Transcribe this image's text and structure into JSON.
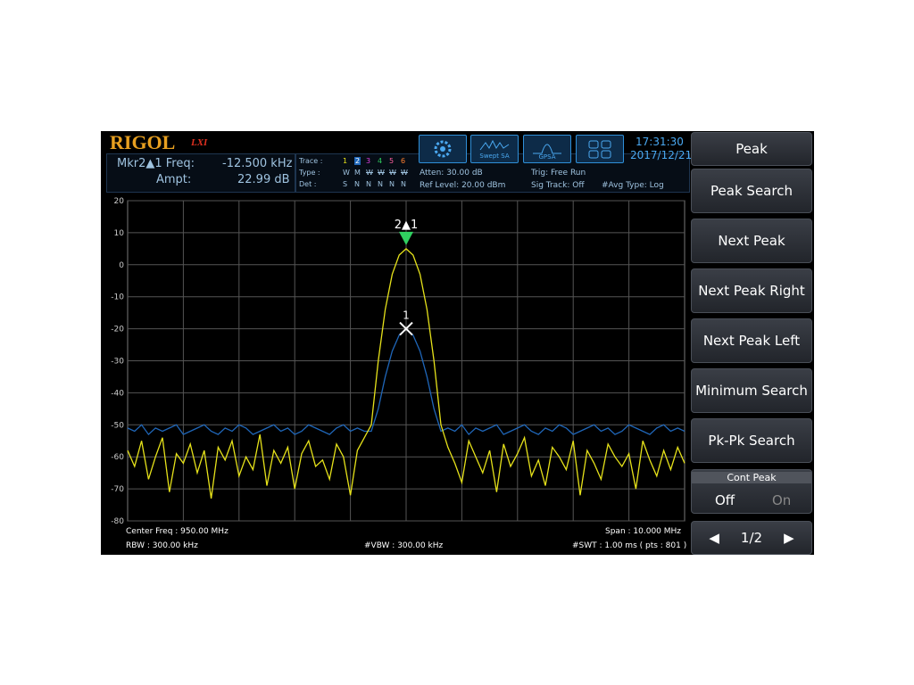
{
  "header": {
    "logo": "RIGOL",
    "logo_sub": "LXI",
    "time": "17:31:30",
    "date": "2017/12/21"
  },
  "marker_readout": {
    "freq_label": "Mkr2▲1 Freq:",
    "freq_value": "-12.500 kHz",
    "ampt_label": "Ampt:",
    "ampt_value": "22.99 dB"
  },
  "trace_table": {
    "rows": [
      [
        "Trace :",
        "1",
        "2",
        "3",
        "4",
        "5",
        "6"
      ],
      [
        "Type :",
        "W",
        "M",
        "W",
        "W",
        "W",
        "W"
      ],
      [
        "Det :",
        "S",
        "N",
        "N",
        "N",
        "N",
        "N"
      ]
    ]
  },
  "mode_icons": [
    "Swept SA",
    "GPSA"
  ],
  "status": {
    "atten": "Atten: 30.00 dB",
    "ref_level": "Ref Level: 20.00 dBm",
    "trig": "Trig: Free Run",
    "sig_track": "Sig Track: Off",
    "avg_type": "#Avg Type: Log"
  },
  "chart_data": {
    "type": "line",
    "ylim": [
      -80,
      20
    ],
    "yticks": [
      20,
      10,
      0,
      -10,
      -20,
      -30,
      -40,
      -50,
      -60,
      -70,
      -80
    ],
    "grid": true,
    "categories": [
      null,
      null,
      null,
      null,
      null,
      null,
      null,
      null,
      null,
      null,
      null,
      null,
      null,
      null,
      null,
      null,
      null,
      null,
      null,
      null,
      null,
      null,
      null,
      null,
      null,
      null,
      null,
      null,
      null,
      null,
      null,
      null,
      null,
      null,
      null,
      null,
      null,
      null,
      null,
      null,
      null,
      null,
      null,
      null,
      null,
      null,
      null,
      null,
      null,
      null,
      null,
      null,
      null,
      null,
      null,
      null,
      null,
      null,
      null,
      null,
      null,
      null,
      null,
      null,
      null,
      null,
      null,
      null,
      null,
      null,
      null,
      null,
      null,
      null,
      null,
      null,
      null,
      null,
      null,
      null,
      null
    ],
    "series": [
      {
        "color": "#e6e21a",
        "values": [
          -58,
          -63,
          -55,
          -67,
          -60,
          -54,
          -71,
          -59,
          -62,
          -56,
          -65,
          -58,
          -73,
          -57,
          -61,
          -55,
          -66,
          -60,
          -64,
          -53,
          -69,
          -58,
          -62,
          -57,
          -70,
          -59,
          -55,
          -63,
          -61,
          -67,
          -56,
          -60,
          -72,
          -58,
          -54,
          -50,
          -30,
          -14,
          -3,
          3,
          5,
          3,
          -3,
          -14,
          -30,
          -50,
          -57,
          -62,
          -68,
          -55,
          -60,
          -65,
          -58,
          -71,
          -56,
          -63,
          -59,
          -54,
          -66,
          -61,
          -69,
          -57,
          -60,
          -64,
          -55,
          -72,
          -58,
          -62,
          -67,
          -56,
          -60,
          -63,
          -59,
          -70,
          -55,
          -61,
          -66,
          -58,
          -64,
          -57,
          -62
        ]
      },
      {
        "color": "#1f66b8",
        "values": [
          -51,
          -52,
          -50,
          -53,
          -51,
          -52,
          -51,
          -50,
          -53,
          -52,
          -51,
          -50,
          -52,
          -53,
          -51,
          -52,
          -50,
          -51,
          -53,
          -52,
          -51,
          -50,
          -52,
          -51,
          -53,
          -52,
          -50,
          -51,
          -52,
          -53,
          -51,
          -50,
          -52,
          -51,
          -52,
          -52,
          -45,
          -35,
          -27,
          -22,
          -20,
          -22,
          -27,
          -35,
          -45,
          -52,
          -51,
          -52,
          -50,
          -53,
          -51,
          -52,
          -51,
          -50,
          -53,
          -52,
          -51,
          -50,
          -52,
          -53,
          -51,
          -52,
          -50,
          -51,
          -53,
          -52,
          -51,
          -50,
          -52,
          -51,
          -53,
          -52,
          -50,
          -51,
          -52,
          -53,
          -51,
          -50,
          -52,
          -51,
          -52
        ]
      }
    ],
    "markers": [
      {
        "label": "2▲1"
      },
      {
        "label": "1"
      }
    ]
  },
  "footer": {
    "center_freq": "Center Freq : 950.00 MHz",
    "span": "Span : 10.000 MHz",
    "rbw": "RBW : 300.00 kHz",
    "vbw": "#VBW : 300.00 kHz",
    "swt": "#SWT : 1.00 ms ( pts : 801 )"
  },
  "softkeys": {
    "title": "Peak",
    "keys": [
      "Peak Search",
      "Next Peak",
      "Next Peak Right",
      "Next Peak Left",
      "Minimum Search",
      "Pk-Pk Search"
    ],
    "cont_peak": {
      "label": "Cont Peak",
      "off": "Off",
      "on": "On"
    },
    "page": "1/2"
  }
}
